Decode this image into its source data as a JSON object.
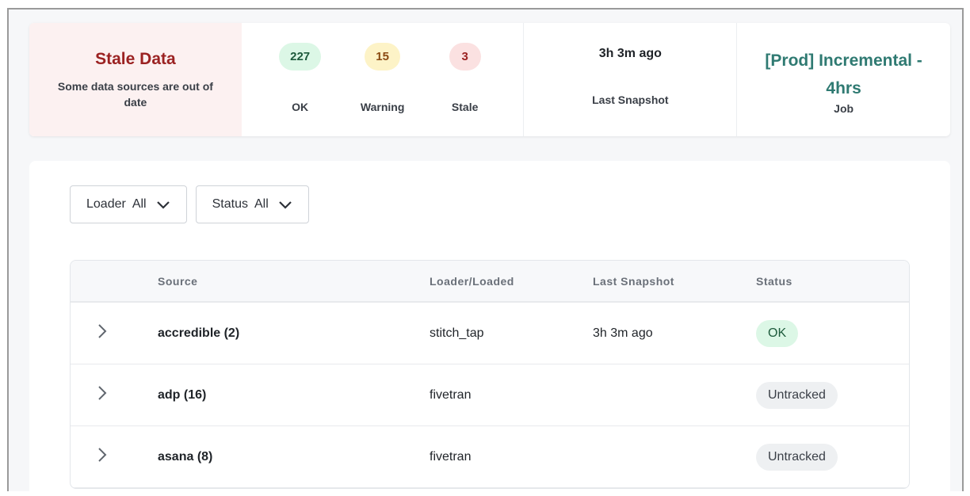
{
  "summary": {
    "stale_title": "Stale Data",
    "stale_desc": "Some data sources are out of date",
    "counts": [
      {
        "value": "227",
        "label": "OK",
        "bg": "#dcf7e6",
        "fg": "#1e5b3c"
      },
      {
        "value": "15",
        "label": "Warning",
        "bg": "#fdf3c7",
        "fg": "#8a4a12"
      },
      {
        "value": "3",
        "label": "Stale",
        "bg": "#fbe1e1",
        "fg": "#9b2222"
      }
    ],
    "last_snapshot": {
      "value": "3h 3m ago",
      "label": "Last Snapshot"
    },
    "job": {
      "value": "[Prod] Incremental - 4hrs",
      "label": "Job"
    }
  },
  "filters": [
    {
      "label": "Loader",
      "value": "All"
    },
    {
      "label": "Status",
      "value": "All"
    }
  ],
  "table": {
    "columns": [
      "",
      "Source",
      "Loader/Loaded",
      "Last Snapshot",
      "Status"
    ],
    "rows": [
      {
        "source": "accredible (2)",
        "loader": "stitch_tap",
        "last_snapshot": "3h 3m ago",
        "status": "OK"
      },
      {
        "source": "adp (16)",
        "loader": "fivetran",
        "last_snapshot": "",
        "status": "Untracked"
      },
      {
        "source": "asana (8)",
        "loader": "fivetran",
        "last_snapshot": "",
        "status": "Untracked"
      }
    ]
  },
  "colors": {
    "ok_bg": "#dcf7e6",
    "ok_fg": "#1e5b3c",
    "untracked_bg": "#eef0f2",
    "untracked_fg": "#3a3f47"
  }
}
